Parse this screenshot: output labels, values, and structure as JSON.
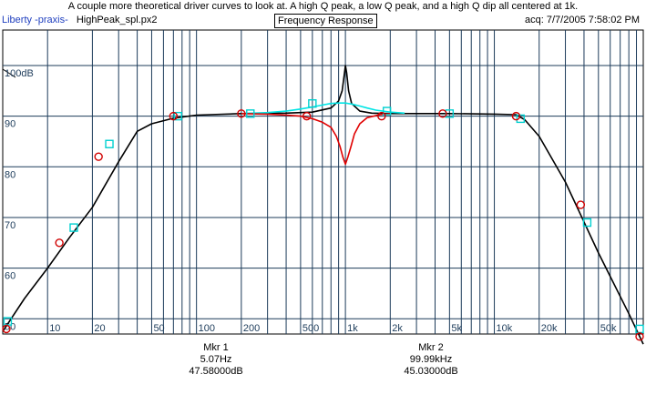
{
  "header": {
    "caption": "A couple more theoretical driver curves to look at. A high Q peak, a low Q peak, and a high Q dip all centered at 1k.",
    "app": "Liberty -praxis-",
    "file": "HighPeak_spl.px2",
    "mode": "Frequency Response",
    "acq": "acq: 7/7/2005 7:58:02 PM"
  },
  "markers": [
    {
      "title": "Mkr 1",
      "freq": "5.07Hz",
      "level": "47.58000dB"
    },
    {
      "title": "Mkr 2",
      "freq": "99.99kHz",
      "level": "45.03000dB"
    }
  ],
  "colors": {
    "background": "#ffffff",
    "grid": "#1c3b5a",
    "base_curve": "#000000",
    "low_q_curve": "#00e5e5",
    "dip_curve": "#e00000",
    "circle_marker": "#d00000",
    "square_marker": "#00d0d0"
  },
  "chart_data": {
    "type": "line",
    "x_scale": "log",
    "xlim": [
      5,
      100000
    ],
    "ylim": [
      47,
      107
    ],
    "x_tick_labels": [
      {
        "x": 10,
        "label": "10"
      },
      {
        "x": 20,
        "label": "20"
      },
      {
        "x": 50,
        "label": "50"
      },
      {
        "x": 100,
        "label": "100"
      },
      {
        "x": 200,
        "label": "200"
      },
      {
        "x": 500,
        "label": "500"
      },
      {
        "x": 1000,
        "label": "1k"
      },
      {
        "x": 2000,
        "label": "2k"
      },
      {
        "x": 5000,
        "label": "5k"
      },
      {
        "x": 10000,
        "label": "10k"
      },
      {
        "x": 20000,
        "label": "20k"
      },
      {
        "x": 50000,
        "label": "50k"
      }
    ],
    "y_tick_labels": [
      {
        "y": 100,
        "label": "100dB"
      },
      {
        "y": 90,
        "label": "90"
      },
      {
        "y": 80,
        "label": "80"
      },
      {
        "y": 70,
        "label": "70"
      },
      {
        "y": 60,
        "label": "60"
      },
      {
        "y": 50,
        "label": "50"
      }
    ],
    "series": [
      {
        "style": "base",
        "color": "#000000",
        "x": [
          5,
          7,
          10,
          14,
          20,
          30,
          40,
          50,
          70,
          100,
          200,
          400,
          600,
          800,
          900,
          950,
          980,
          1000,
          1020,
          1050,
          1100,
          1250,
          1500,
          2000,
          5000,
          10000,
          14000,
          16000,
          20000,
          30000,
          50000,
          80000,
          100000
        ],
        "y": [
          47.5,
          54,
          60,
          66,
          72,
          81,
          87,
          88.5,
          89.6,
          90.2,
          90.5,
          90.6,
          90.8,
          91.6,
          93,
          95,
          98,
          100,
          98.5,
          95,
          92.5,
          91,
          90.6,
          90.5,
          90.5,
          90.4,
          90.3,
          89.3,
          86,
          77,
          63,
          51,
          45
        ]
      },
      {
        "style": "low-q",
        "color": "#00e5e5",
        "x": [
          200,
          300,
          400,
          500,
          600,
          700,
          800,
          900,
          1000,
          1100,
          1250,
          1400,
          1600,
          2000,
          2500
        ],
        "y": [
          90.5,
          90.7,
          91,
          91.4,
          91.8,
          92.2,
          92.5,
          92.6,
          92.6,
          92.4,
          92,
          91.6,
          91.2,
          90.8,
          90.6
        ]
      },
      {
        "style": "dip",
        "color": "#e00000",
        "x": [
          200,
          300,
          400,
          500,
          600,
          700,
          800,
          870,
          920,
          960,
          1000,
          1040,
          1090,
          1150,
          1250,
          1400,
          1700,
          2000
        ],
        "y": [
          90.5,
          90.4,
          90.2,
          90,
          89.5,
          88.8,
          87.8,
          86,
          84,
          82,
          80.5,
          82,
          84,
          86.5,
          88.5,
          89.7,
          90.3,
          90.5
        ]
      }
    ],
    "circle_markers": [
      {
        "x": 5,
        "y": 48
      },
      {
        "x": 12,
        "y": 65
      },
      {
        "x": 22,
        "y": 82
      },
      {
        "x": 70,
        "y": 90
      },
      {
        "x": 200,
        "y": 90.5
      },
      {
        "x": 550,
        "y": 90
      },
      {
        "x": 1750,
        "y": 90
      },
      {
        "x": 4500,
        "y": 90.5
      },
      {
        "x": 14000,
        "y": 90
      },
      {
        "x": 38000,
        "y": 72.5
      },
      {
        "x": 100000,
        "y": 46.5
      }
    ],
    "square_markers": [
      {
        "x": 5.4,
        "y": 49.5
      },
      {
        "x": 15,
        "y": 68
      },
      {
        "x": 26,
        "y": 84.5
      },
      {
        "x": 75,
        "y": 90
      },
      {
        "x": 230,
        "y": 90.5
      },
      {
        "x": 600,
        "y": 92.5
      },
      {
        "x": 1900,
        "y": 91
      },
      {
        "x": 5000,
        "y": 90.5
      },
      {
        "x": 15000,
        "y": 89.5
      },
      {
        "x": 42000,
        "y": 69
      },
      {
        "x": 100000,
        "y": 48
      }
    ]
  }
}
